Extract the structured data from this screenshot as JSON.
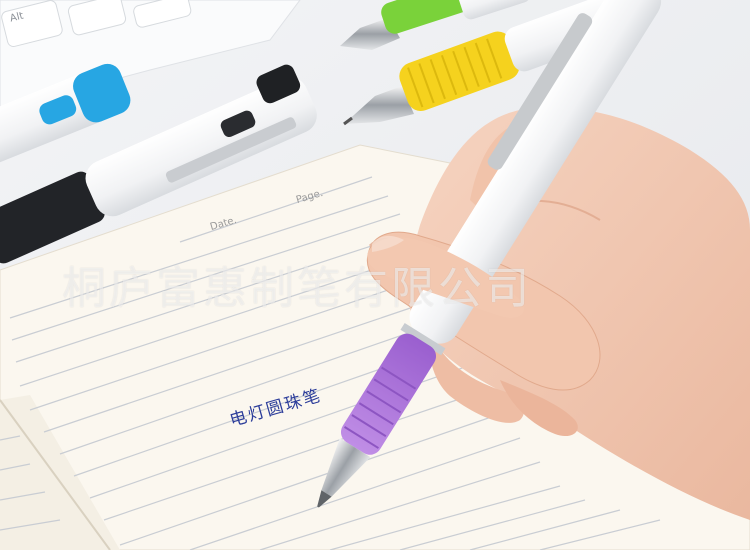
{
  "photo": {
    "watermark": "桐庐富惠制笔有限公司",
    "handwriting": "电灯圆珠笔",
    "notebook": {
      "date_label": "Date.",
      "page_label": "Page."
    },
    "keyboard": {
      "key_label": "Alt"
    },
    "colors": {
      "background": "#eef0f3",
      "paper": "#fbf7ef",
      "ruled_line": "#c9cdd3",
      "pen_grip_purple": "#b27ad8",
      "pen_grip_yellow": "#f5d21e",
      "pen_grip_green": "#7ad23a",
      "pen_grip_blue": "#27a6e3",
      "pen_body": "#f6f6f7",
      "skin": "#f2cbb5",
      "ink": "#2c3d9a"
    }
  }
}
